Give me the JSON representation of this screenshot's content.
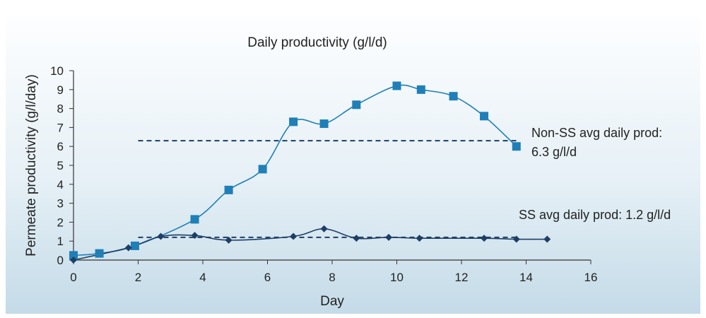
{
  "chart_data": {
    "type": "line",
    "title": "Daily productivity (g/l/d)",
    "xlabel": "Day",
    "ylabel": "Permeate productivity (g/l/day)",
    "xlim": [
      0,
      16
    ],
    "ylim": [
      0,
      10
    ],
    "xticks": [
      0,
      2,
      4,
      6,
      8,
      10,
      12,
      14,
      16
    ],
    "yticks": [
      0,
      1,
      2,
      3,
      4,
      5,
      6,
      7,
      8,
      9,
      10
    ],
    "grid": false,
    "series": [
      {
        "marker": "square",
        "color": "#1f7fb6",
        "x": [
          0,
          0.8,
          1.9,
          3.75,
          4.8,
          5.85,
          6.8,
          7.75,
          8.75,
          10.0,
          10.75,
          11.75,
          12.7,
          13.7
        ],
        "y": [
          0.25,
          0.35,
          0.75,
          2.15,
          3.7,
          4.8,
          7.3,
          7.2,
          8.2,
          9.2,
          9.0,
          8.65,
          7.6,
          6.0
        ]
      },
      {
        "marker": "diamond",
        "color": "#1d3f66",
        "x": [
          0,
          1.7,
          2.7,
          3.75,
          4.8,
          6.8,
          7.75,
          8.75,
          9.75,
          10.7,
          12.7,
          13.7,
          14.65
        ],
        "y": [
          0,
          0.65,
          1.25,
          1.3,
          1.05,
          1.25,
          1.65,
          1.15,
          1.2,
          1.15,
          1.15,
          1.1,
          1.1
        ]
      }
    ],
    "reference_lines": [
      {
        "y": 6.3,
        "x_start": 2.0,
        "x_end": 13.7,
        "color": "#1d3f66",
        "style": "dashed",
        "label_lines": [
          "Non-SS avg daily prod:",
          "6.3 g/l/d"
        ]
      },
      {
        "y": 1.2,
        "x_start": 2.0,
        "x_end": 13.7,
        "color": "#1d3f66",
        "style": "dashed",
        "label_lines": [
          "SS avg daily prod: 1.2 g/l/d"
        ]
      }
    ]
  }
}
